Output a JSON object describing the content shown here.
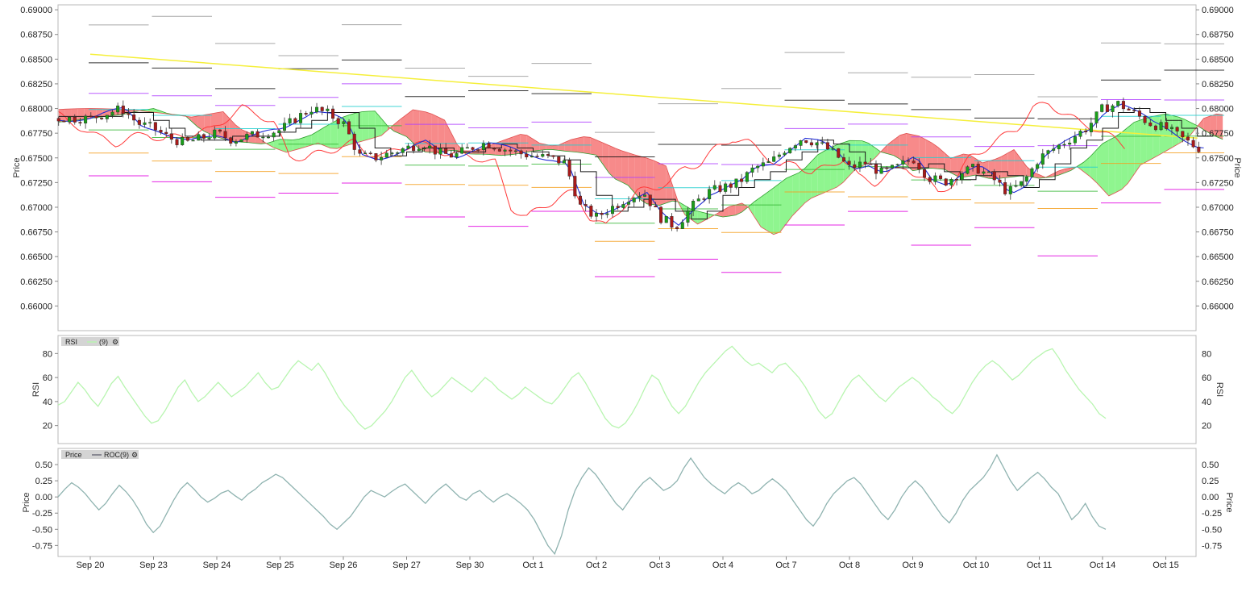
{
  "colors": {
    "background": "#ffffff",
    "panel_border": "#b8b8b8",
    "candle_up": "#1a9e1a",
    "candle_down": "#a81a1a",
    "tenkan": "#1f2bd6",
    "kijun": "#1a1a1a",
    "chikou": "#ff3b3b",
    "trendline": "#f5ef3a",
    "cloud_bull": "#8ff58f",
    "cloud_bear": "#f78a8a",
    "rsi_line": "#b8f5b0",
    "roc_line": "#8fb3b0",
    "legend_bg": "#d4d4d4",
    "pivot_gray": "#9a9a9a",
    "pivot_black": "#111111",
    "pivot_magenta": "#e000e0",
    "pivot_orange": "#f5a020",
    "pivot_green": "#38b838",
    "pivot_cyan": "#20d0d0",
    "pivot_purple": "#b040ff"
  },
  "chart_data": [
    {
      "type": "candlestick",
      "panel": "price",
      "ylabel": "Price",
      "ylim": [
        0.6575,
        0.6905
      ],
      "yticks": [
        0.66,
        0.6625,
        0.665,
        0.6675,
        0.67,
        0.6725,
        0.675,
        0.6775,
        0.68,
        0.6825,
        0.685,
        0.6875,
        0.69
      ],
      "ytick_labels": [
        "0.66000",
        "0.66250",
        "0.66500",
        "0.66750",
        "0.67000",
        "0.67250",
        "0.67500",
        "0.67750",
        "0.68000",
        "0.68250",
        "0.68500",
        "0.68750",
        "0.69000"
      ],
      "x_categories": [
        "Sep 20",
        "Sep 23",
        "Sep 24",
        "Sep 25",
        "Sep 26",
        "Sep 27",
        "Sep 30",
        "Oct 1",
        "Oct 2",
        "Oct 3",
        "Oct 4",
        "Oct 7",
        "Oct 8",
        "Oct 9",
        "Oct 10",
        "Oct 11",
        "Oct 14",
        "Oct 15"
      ],
      "close_path": [
        [
          0.0,
          0.679
        ],
        [
          0.25,
          0.6795
        ],
        [
          0.5,
          0.68
        ],
        [
          0.75,
          0.6785
        ],
        [
          1.0,
          0.678
        ],
        [
          1.25,
          0.677
        ],
        [
          1.5,
          0.6765
        ],
        [
          1.75,
          0.677
        ],
        [
          2.0,
          0.6775
        ],
        [
          2.25,
          0.6768
        ],
        [
          2.5,
          0.6772
        ],
        [
          2.75,
          0.6775
        ],
        [
          3.0,
          0.6778
        ],
        [
          3.25,
          0.679
        ],
        [
          3.5,
          0.68
        ],
        [
          3.75,
          0.6795
        ],
        [
          4.0,
          0.6785
        ],
        [
          4.25,
          0.6752
        ],
        [
          4.5,
          0.675
        ],
        [
          4.75,
          0.6755
        ],
        [
          5.0,
          0.676
        ],
        [
          5.25,
          0.6765
        ],
        [
          5.5,
          0.6755
        ],
        [
          5.75,
          0.6752
        ],
        [
          6.0,
          0.676
        ],
        [
          6.25,
          0.6765
        ],
        [
          6.5,
          0.676
        ],
        [
          6.75,
          0.6755
        ],
        [
          7.0,
          0.6752
        ],
        [
          7.25,
          0.675
        ],
        [
          7.5,
          0.6745
        ],
        [
          7.75,
          0.67
        ],
        [
          8.0,
          0.669
        ],
        [
          8.25,
          0.67
        ],
        [
          8.5,
          0.671
        ],
        [
          8.75,
          0.6715
        ],
        [
          9.0,
          0.669
        ],
        [
          9.25,
          0.668
        ],
        [
          9.5,
          0.67
        ],
        [
          9.75,
          0.6715
        ],
        [
          10.0,
          0.672
        ],
        [
          10.25,
          0.6725
        ],
        [
          10.5,
          0.674
        ],
        [
          10.75,
          0.6745
        ],
        [
          11.0,
          0.676
        ],
        [
          11.25,
          0.677
        ],
        [
          11.5,
          0.6765
        ],
        [
          11.75,
          0.6755
        ],
        [
          12.0,
          0.674
        ],
        [
          12.25,
          0.6745
        ],
        [
          12.5,
          0.6735
        ],
        [
          12.75,
          0.674
        ],
        [
          13.0,
          0.675
        ],
        [
          13.25,
          0.673
        ],
        [
          13.5,
          0.6725
        ],
        [
          13.75,
          0.6735
        ],
        [
          14.0,
          0.674
        ],
        [
          14.25,
          0.673
        ],
        [
          14.5,
          0.6715
        ],
        [
          14.75,
          0.6725
        ],
        [
          15.0,
          0.675
        ],
        [
          15.25,
          0.676
        ],
        [
          15.5,
          0.677
        ],
        [
          15.75,
          0.678
        ],
        [
          16.0,
          0.68
        ],
        [
          16.25,
          0.6805
        ],
        [
          16.5,
          0.6795
        ],
        [
          16.75,
          0.6785
        ],
        [
          17.0,
          0.678
        ],
        [
          17.25,
          0.677
        ],
        [
          17.5,
          0.676
        ]
      ],
      "trendline": [
        [
          0.0,
          0.6855
        ],
        [
          17.5,
          0.677
        ]
      ]
    },
    {
      "type": "line",
      "panel": "rsi",
      "legend": "RSI",
      "legend_series": "(9)",
      "ylabel": "RSI",
      "ylim": [
        5,
        95
      ],
      "yticks": [
        20,
        40,
        60,
        80
      ],
      "values": [
        37,
        40,
        48,
        56,
        50,
        42,
        36,
        45,
        55,
        61,
        52,
        44,
        36,
        28,
        22,
        24,
        32,
        42,
        52,
        58,
        48,
        40,
        44,
        50,
        56,
        50,
        44,
        48,
        52,
        58,
        64,
        56,
        50,
        52,
        60,
        68,
        74,
        70,
        66,
        72,
        64,
        54,
        44,
        36,
        30,
        22,
        17,
        20,
        26,
        32,
        40,
        50,
        60,
        66,
        58,
        50,
        44,
        48,
        54,
        60,
        56,
        52,
        48,
        54,
        60,
        56,
        50,
        46,
        42,
        46,
        52,
        48,
        44,
        40,
        38,
        44,
        52,
        60,
        64,
        56,
        46,
        36,
        26,
        20,
        18,
        22,
        30,
        40,
        52,
        62,
        58,
        46,
        36,
        30,
        36,
        46,
        56,
        64,
        70,
        76,
        82,
        86,
        80,
        74,
        70,
        72,
        68,
        64,
        70,
        72,
        66,
        60,
        52,
        42,
        32,
        26,
        30,
        40,
        50,
        58,
        62,
        56,
        50,
        44,
        40,
        46,
        52,
        56,
        60,
        56,
        50,
        44,
        40,
        34,
        30,
        36,
        46,
        56,
        64,
        70,
        74,
        70,
        64,
        58,
        62,
        68,
        74,
        78,
        82,
        84,
        76,
        66,
        58,
        50,
        44,
        38,
        30,
        26
      ]
    },
    {
      "type": "line",
      "panel": "roc",
      "legend": "Price",
      "legend_series": "ROC(9)",
      "ylabel": "Price",
      "ylim": [
        -0.92,
        0.75
      ],
      "yticks": [
        -0.75,
        -0.5,
        -0.25,
        0.0,
        0.25,
        0.5
      ],
      "ytick_labels": [
        "-0.75",
        "-0.50",
        "-0.25",
        "0.00",
        "0.25",
        "0.50"
      ],
      "values": [
        0.0,
        0.12,
        0.22,
        0.15,
        0.05,
        -0.08,
        -0.2,
        -0.1,
        0.05,
        0.18,
        0.08,
        -0.05,
        -0.22,
        -0.42,
        -0.55,
        -0.45,
        -0.25,
        -0.05,
        0.12,
        0.22,
        0.12,
        0.0,
        -0.08,
        -0.02,
        0.06,
        0.1,
        0.02,
        -0.05,
        0.05,
        0.12,
        0.22,
        0.28,
        0.35,
        0.3,
        0.2,
        0.1,
        0.0,
        -0.1,
        -0.2,
        -0.3,
        -0.42,
        -0.5,
        -0.4,
        -0.3,
        -0.15,
        0.0,
        0.1,
        0.05,
        0.0,
        0.08,
        0.15,
        0.2,
        0.1,
        0.0,
        -0.1,
        0.02,
        0.12,
        0.2,
        0.1,
        0.0,
        -0.05,
        0.05,
        0.1,
        0.0,
        -0.08,
        0.0,
        0.05,
        -0.02,
        -0.1,
        -0.2,
        -0.35,
        -0.55,
        -0.75,
        -0.88,
        -0.6,
        -0.2,
        0.1,
        0.3,
        0.45,
        0.35,
        0.2,
        0.05,
        -0.1,
        -0.2,
        -0.05,
        0.1,
        0.22,
        0.3,
        0.2,
        0.1,
        0.15,
        0.25,
        0.45,
        0.6,
        0.45,
        0.3,
        0.2,
        0.12,
        0.05,
        0.15,
        0.22,
        0.15,
        0.05,
        0.1,
        0.2,
        0.28,
        0.2,
        0.1,
        -0.05,
        -0.2,
        -0.35,
        -0.45,
        -0.3,
        -0.1,
        0.05,
        0.15,
        0.25,
        0.3,
        0.2,
        0.05,
        -0.1,
        -0.25,
        -0.35,
        -0.2,
        0.0,
        0.15,
        0.25,
        0.15,
        0.0,
        -0.15,
        -0.3,
        -0.4,
        -0.25,
        -0.05,
        0.1,
        0.2,
        0.3,
        0.45,
        0.65,
        0.45,
        0.25,
        0.1,
        0.2,
        0.3,
        0.38,
        0.28,
        0.15,
        0.05,
        -0.15,
        -0.35,
        -0.25,
        -0.1,
        -0.3,
        -0.45,
        -0.5
      ]
    }
  ]
}
